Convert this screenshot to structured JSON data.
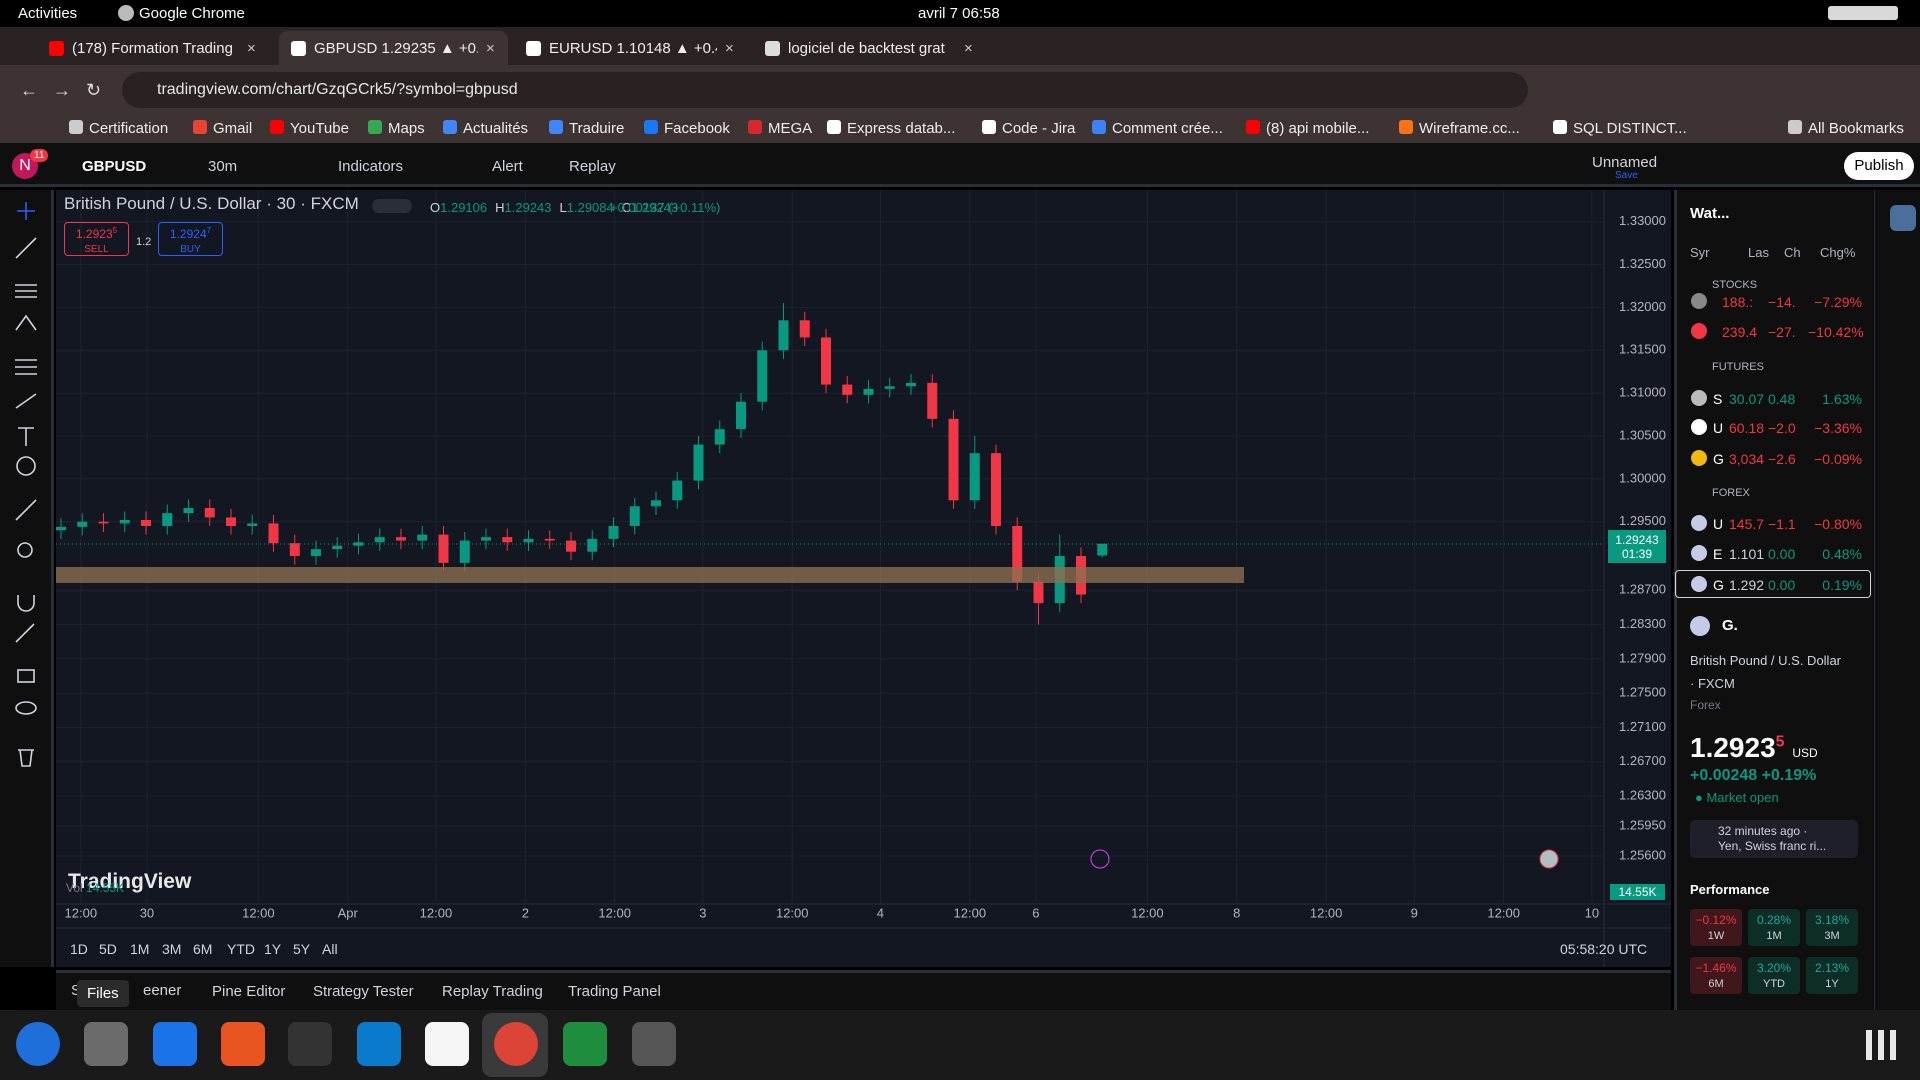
{
  "os_bar": {
    "activities": "Activities",
    "app": "Google Chrome",
    "clock": "avril 7  06:58"
  },
  "tabs": [
    "(178) Formation Trading",
    "GBPUSD 1.29235 ▲ +0.1",
    "EURUSD 1.10148 ▲ +0.4",
    "logiciel de backtest grat"
  ],
  "url": "tradingview.com/chart/GzqGCrk5/?symbol=gbpusd",
  "bookmarks": [
    "Certification",
    "Gmail",
    "YouTube",
    "Maps",
    "Actualités",
    "Traduire",
    "Facebook",
    "MEGA",
    "Express datab...",
    "Code - Jira",
    "Comment crée...",
    "(8) api mobile...",
    "Wireframe.cc...",
    "SQL DISTINCT...",
    "All Bookmarks"
  ],
  "toolbar": {
    "avatar": "N",
    "badge": "11",
    "symbol": "GBPUSD",
    "interval": "30m",
    "indicators": "Indicators",
    "alert": "Alert",
    "replay": "Replay",
    "layout": "Unnamed",
    "save": "Save",
    "publish": "Publish"
  },
  "legend": {
    "title": "British Pound / U.S. Dollar · 30 · FXCM",
    "ohlc": [
      {
        "k": "O",
        "v": "1.29106"
      },
      {
        "k": "H",
        "v": "1.29243"
      },
      {
        "k": "L",
        "v": "1.29084"
      },
      {
        "k": "C",
        "v": "1.29243"
      }
    ],
    "change": "+0.00137 (+0.11%)"
  },
  "trade": {
    "sell_price": "1.2923",
    "sell_sup": "5",
    "sell": "SELL",
    "spread": "1.2",
    "buy_price": "1.2924",
    "buy_sup": "7",
    "buy": "BUY"
  },
  "price_tag": {
    "price": "1.29243",
    "countdown": "01:39"
  },
  "volume": {
    "label": "Vol",
    "value": "14.55K",
    "tag": "14.55K"
  },
  "logo": "TradingView",
  "ranges": [
    "1D",
    "5D",
    "1M",
    "3M",
    "6M",
    "YTD",
    "1Y",
    "5Y",
    "All"
  ],
  "clock_utc": "05:58:20 UTC",
  "bottom_tabs": {
    "tooltip": "Files",
    "first": "S",
    "screener": "eener",
    "items": [
      "Pine Editor",
      "Strategy Tester",
      "Replay Trading",
      "Trading Panel"
    ]
  },
  "watchlist": {
    "title": "Wat...",
    "columns": [
      "Syr",
      "Las",
      "Ch",
      "Chg%"
    ],
    "groups": [
      {
        "name": "STOCKS",
        "rows": [
          {
            "last": "188.:",
            "ch": "−14.",
            "chg": "−7.29%"
          },
          {
            "last": "239.4",
            "ch": "−27.",
            "chg": "−10.42%"
          }
        ]
      },
      {
        "name": "FUTURES",
        "rows": [
          {
            "sym": "S",
            "last": "30.07",
            "ch": "0.48",
            "chg": "1.63%"
          },
          {
            "sym": "U",
            "last": "60.18",
            "ch": "−2.0",
            "chg": "−3.36%"
          },
          {
            "sym": "G",
            "last": "3,034",
            "ch": "−2.6",
            "chg": "−0.09%"
          }
        ]
      },
      {
        "name": "FOREX",
        "rows": [
          {
            "sym": "U",
            "last": "145.7",
            "ch": "−1.1",
            "chg": "−0.80%"
          },
          {
            "sym": "E",
            "last": "1.101",
            "ch": "0.00",
            "chg": "0.48%"
          },
          {
            "sym": "G",
            "last": "1.292",
            "ch": "0.00",
            "chg": "0.19%"
          }
        ]
      }
    ]
  },
  "details": {
    "symbol": "G.",
    "name": "British Pound / U.S. Dollar",
    "exchange": "· FXCM",
    "kind": "Forex",
    "price": "1.2923",
    "price_sup": "5",
    "currency": "USD",
    "change": "+0.00248",
    "change_pct": "+0.19%",
    "status": "Market open",
    "news_time": "32 minutes ago ·",
    "news": "Yen, Swiss franc ri...",
    "performance_title": "Performance",
    "performance": [
      {
        "v": "−0.12%",
        "p": "1W"
      },
      {
        "v": "0.28%",
        "p": "1M"
      },
      {
        "v": "3.18%",
        "p": "3M"
      },
      {
        "v": "−1.46%",
        "p": "6M"
      },
      {
        "v": "3.20%",
        "p": "YTD"
      },
      {
        "v": "2.13%",
        "p": "1Y"
      }
    ]
  },
  "chart_data": {
    "type": "candlestick",
    "up_color": "#089981",
    "down_color": "#f23645",
    "grid": true,
    "open": [
      1.294,
      1.2944,
      1.295,
      1.2948,
      1.2952,
      1.2945,
      1.296,
      1.2966,
      1.2955,
      1.2945,
      1.2948,
      1.2925,
      1.291,
      1.2918,
      1.2922,
      1.2926,
      1.2932,
      1.2928,
      1.2935,
      1.2902,
      1.2928,
      1.2932,
      1.2926,
      1.293,
      1.2928,
      1.2915,
      1.293,
      1.2945,
      1.2968,
      1.2975,
      1.2998,
      1.304,
      1.3058,
      1.309,
      1.315,
      1.3185,
      1.3165,
      1.311,
      1.3098,
      1.3105,
      1.3108,
      1.3112,
      1.307,
      1.2975,
      1.303,
      1.2945,
      1.288,
      1.2855,
      1.291,
      1.29106
    ],
    "high": [
      1.2954,
      1.296,
      1.296,
      1.2962,
      1.2962,
      1.297,
      1.2976,
      1.2976,
      1.2965,
      1.2958,
      1.2958,
      1.2935,
      1.2928,
      1.2932,
      1.2936,
      1.2942,
      1.2942,
      1.2945,
      1.2945,
      1.2938,
      1.2942,
      1.2942,
      1.294,
      1.294,
      1.2938,
      1.294,
      1.2955,
      1.2978,
      1.2985,
      1.3008,
      1.305,
      1.3068,
      1.31,
      1.316,
      1.3205,
      1.3195,
      1.3175,
      1.312,
      1.3115,
      1.3118,
      1.3122,
      1.3122,
      1.308,
      1.305,
      1.304,
      1.2955,
      1.289,
      1.2935,
      1.292,
      1.29243
    ],
    "low": [
      1.293,
      1.2934,
      1.2938,
      1.2938,
      1.2935,
      1.2935,
      1.295,
      1.2945,
      1.2935,
      1.2935,
      1.2915,
      1.29,
      1.29,
      1.2908,
      1.2912,
      1.2916,
      1.2918,
      1.2918,
      1.2892,
      1.2892,
      1.2918,
      1.2916,
      1.2916,
      1.2918,
      1.2905,
      1.2905,
      1.292,
      1.2935,
      1.2958,
      1.2965,
      1.2988,
      1.303,
      1.3048,
      1.308,
      1.314,
      1.3155,
      1.31,
      1.3088,
      1.3088,
      1.3095,
      1.3098,
      1.306,
      1.2965,
      1.2965,
      1.2935,
      1.287,
      1.283,
      1.2845,
      1.2855,
      1.29084
    ],
    "close": [
      1.2944,
      1.295,
      1.2948,
      1.2952,
      1.2945,
      1.296,
      1.2966,
      1.2955,
      1.2945,
      1.2948,
      1.2925,
      1.291,
      1.2918,
      1.2922,
      1.2926,
      1.2932,
      1.2928,
      1.2935,
      1.2902,
      1.2928,
      1.2932,
      1.2926,
      1.293,
      1.2928,
      1.2915,
      1.293,
      1.2945,
      1.2968,
      1.2975,
      1.2998,
      1.304,
      1.3058,
      1.309,
      1.315,
      1.3185,
      1.3165,
      1.311,
      1.3098,
      1.3105,
      1.3108,
      1.3112,
      1.307,
      1.2975,
      1.303,
      1.2945,
      1.288,
      1.2855,
      1.291,
      1.2865,
      1.29243
    ],
    "ylim": [
      1.2504,
      1.3337
    ],
    "yticks": [
      {
        "value": 1.33,
        "label": "1.33000"
      },
      {
        "value": 1.325,
        "label": "1.32500"
      },
      {
        "value": 1.32,
        "label": "1.32000"
      },
      {
        "value": 1.315,
        "label": "1.31500"
      },
      {
        "value": 1.31,
        "label": "1.31000"
      },
      {
        "value": 1.305,
        "label": "1.30500"
      },
      {
        "value": 1.3,
        "label": "1.30000"
      },
      {
        "value": 1.295,
        "label": "1.29500"
      },
      {
        "value": 1.287,
        "label": "1.28700"
      },
      {
        "value": 1.283,
        "label": "1.28300"
      },
      {
        "value": 1.279,
        "label": "1.27900"
      },
      {
        "value": 1.275,
        "label": "1.27500"
      },
      {
        "value": 1.271,
        "label": "1.27100"
      },
      {
        "value": 1.267,
        "label": "1.26700"
      },
      {
        "value": 1.263,
        "label": "1.26300"
      },
      {
        "value": 1.2595,
        "label": "1.25950"
      },
      {
        "value": 1.256,
        "label": "1.25600"
      }
    ],
    "xticks": [
      "12:00",
      "30",
      "12:00",
      "Apr",
      "12:00",
      "2",
      "12:00",
      "3",
      "12:00",
      "4",
      "12:00",
      "6",
      "12:00",
      "8",
      "12:00",
      "9",
      "12:00",
      "10"
    ]
  }
}
